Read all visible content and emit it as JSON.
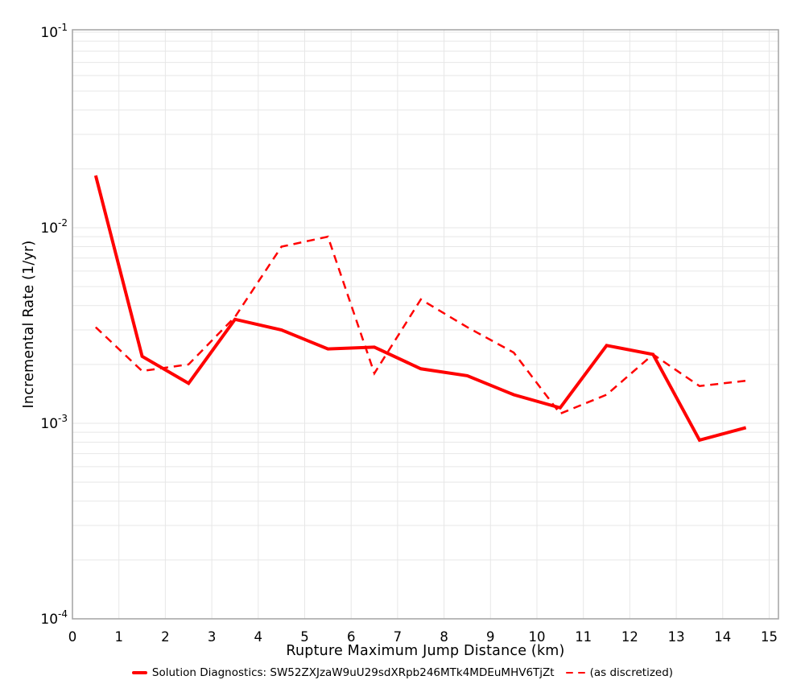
{
  "colors": {
    "line_red": "#ff0000",
    "grid": "#e7e7e7",
    "plot_border": "#a8a8a8",
    "tick_text": "#000000"
  },
  "chart_data": {
    "type": "line",
    "title": "",
    "xlabel": "Rupture Maximum Jump Distance (km)",
    "ylabel": "Incremental Rate (1/yr)",
    "x_axis": {
      "scale": "linear",
      "min": 0,
      "max": 15.2,
      "ticks": [
        0,
        1,
        2,
        3,
        4,
        5,
        6,
        7,
        8,
        9,
        10,
        11,
        12,
        13,
        14,
        15
      ]
    },
    "y_axis": {
      "scale": "log",
      "min": 0.0001,
      "max": 0.1,
      "tick_exponents": [
        -1,
        -2,
        -3,
        -4
      ],
      "tick_labels": [
        "10⁻¹",
        "10⁻²",
        "10⁻³",
        "10⁻⁴"
      ]
    },
    "grid": "on",
    "legend_position": "bottom",
    "x": [
      0.5,
      1.5,
      2.5,
      3.5,
      4.5,
      5.5,
      6.5,
      7.5,
      8.5,
      9.5,
      10.5,
      11.5,
      12.5,
      13.5,
      14.5
    ],
    "series": [
      {
        "name": "Solution Diagnostics: SW52ZXJzaW9uU29sdXRpb246MTk4MDEuMHV6TjZt",
        "style": "solid",
        "width": 4,
        "values": [
          0.0185,
          0.0022,
          0.0016,
          0.0034,
          0.003,
          0.0024,
          0.00245,
          0.0019,
          0.00175,
          0.0014,
          0.0012,
          0.0025,
          0.00225,
          0.00082,
          0.00095
        ]
      },
      {
        "name": "(as discretized)",
        "style": "dashed",
        "width": 2.5,
        "values": [
          0.0031,
          0.00185,
          0.002,
          0.0035,
          0.008,
          0.009,
          0.0018,
          0.0043,
          0.0031,
          0.0023,
          0.00112,
          0.0014,
          0.00225,
          0.00155,
          0.00165
        ]
      }
    ]
  }
}
